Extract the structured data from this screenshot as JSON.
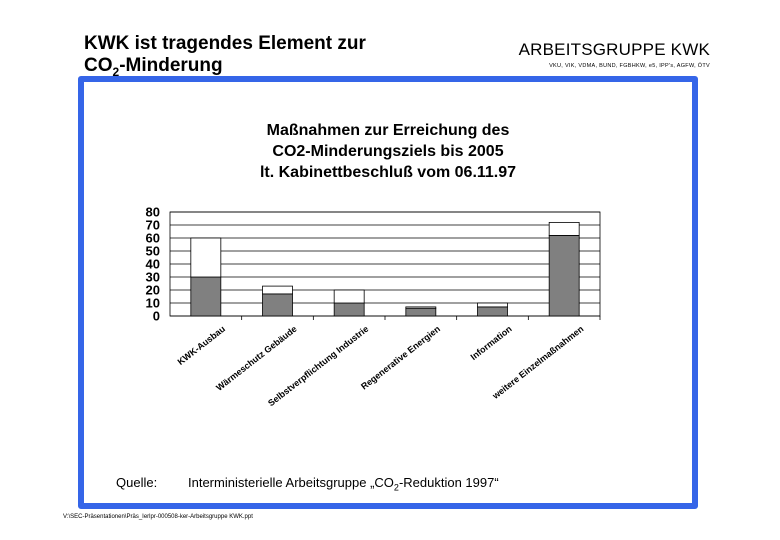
{
  "slide": {
    "title_line1": "KWK ist tragendes Element zur",
    "title_line2_prefix": "CO",
    "title_line2_sub": "2",
    "title_line2_suffix": "-Minderung",
    "org_name": "ARBEITSGRUPPE KWK",
    "org_members": "VKU, VIK, VDMA, BUND, FGBHKW, e5, IPP's, AGFW, ÖTV",
    "source_label": "Quelle:",
    "source_prefix": "Interministerielle Arbeitsgruppe „CO",
    "source_sub": "2",
    "source_suffix": "-Reduktion 1997“",
    "footer_path": "V:\\SEC-Präsentationen\\Präs_Ierlpr-000508-ker-Arbeitsgruppe KWK.ppt",
    "accent_color": "#3565e8"
  },
  "chart_data": {
    "type": "bar",
    "stacked": true,
    "title_lines": [
      "Maßnahmen zur Erreichung des",
      "CO2-Minderungsziels bis 2005",
      "lt. Kabinettbeschluß vom 06.11.97"
    ],
    "categories": [
      "KWK-Ausbau",
      "Wärmeschutz Gebäude",
      "Selbstverpflichtung Industrie",
      "Regenerative Energien",
      "Information",
      "weitere Einzelmaßnahmen"
    ],
    "series": [
      {
        "values": [
          30,
          17,
          10,
          6,
          7,
          62
        ],
        "color": "#808080"
      },
      {
        "values": [
          30,
          6,
          10,
          1,
          3,
          10
        ],
        "color": "#ffffff"
      }
    ],
    "ylim": [
      0,
      80
    ],
    "yticks": [
      0,
      10,
      20,
      30,
      40,
      50,
      60,
      70,
      80
    ],
    "grid": true
  }
}
